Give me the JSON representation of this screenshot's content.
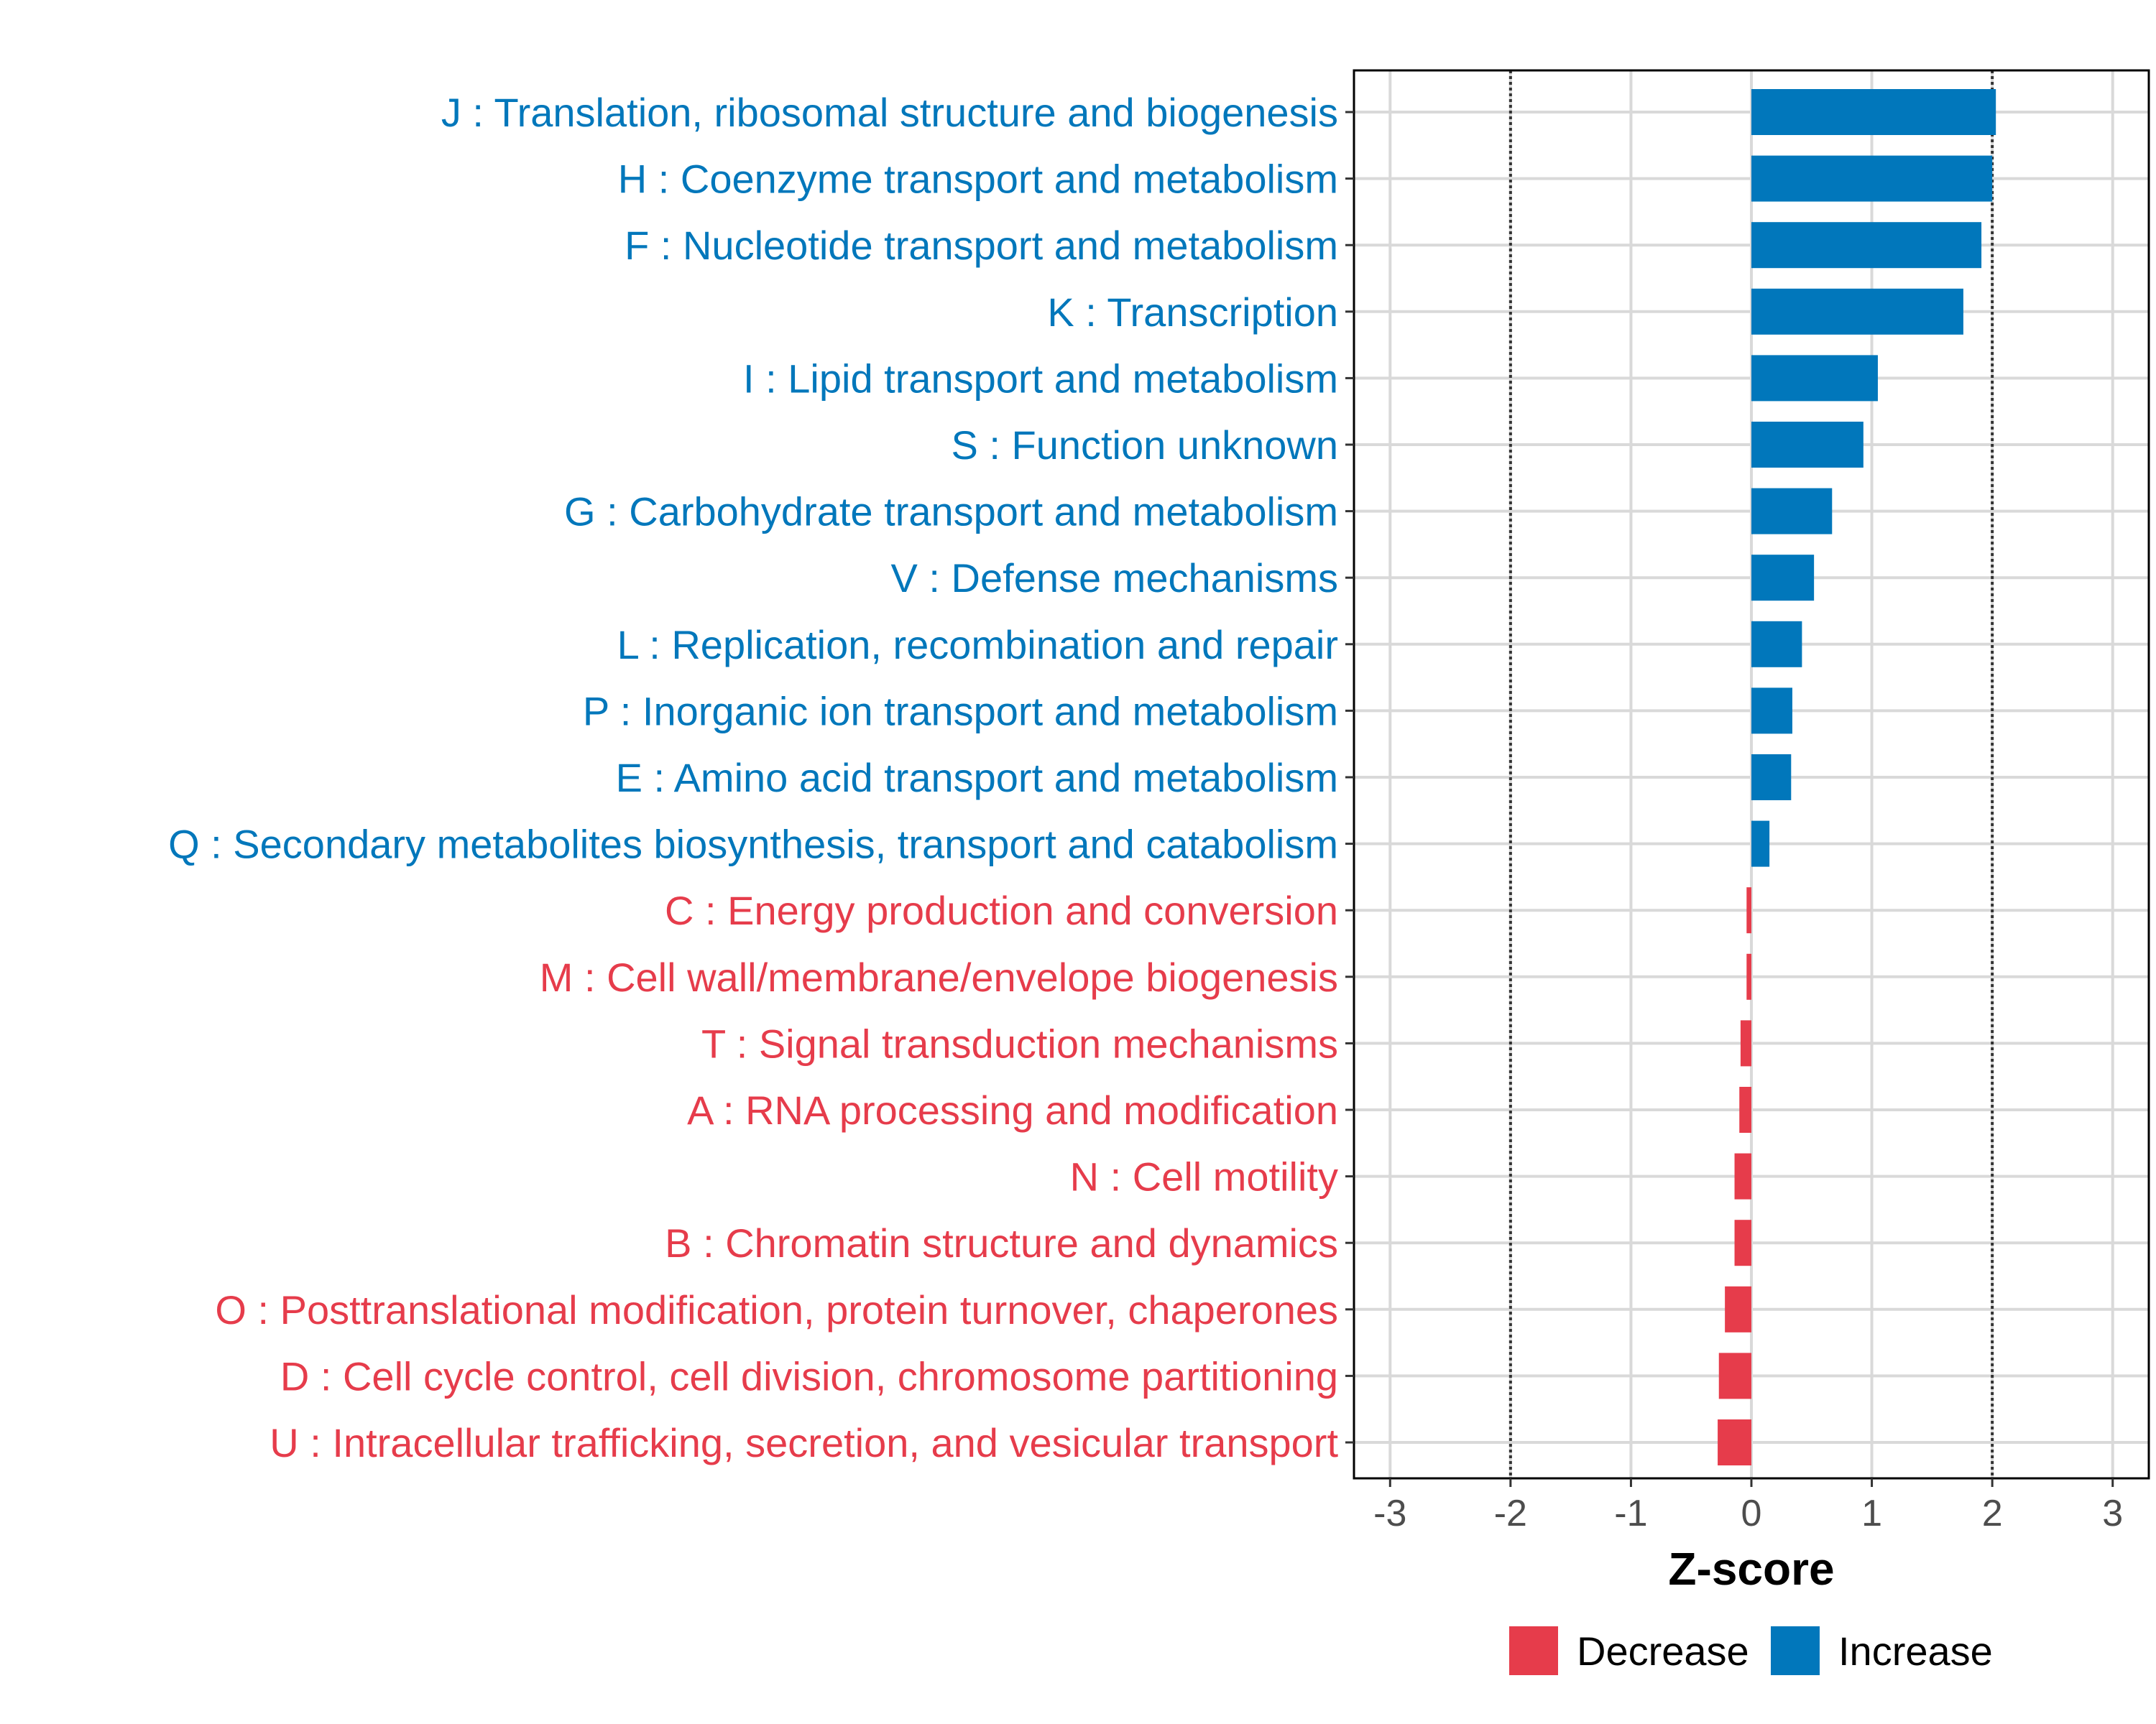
{
  "chart_data": {
    "type": "bar",
    "orientation": "horizontal",
    "title": "",
    "xlabel": "Z-score",
    "ylabel": "",
    "xlim": [
      -3.3,
      3.3
    ],
    "x_ticks": [
      -3,
      -2,
      -1,
      0,
      1,
      2,
      3
    ],
    "x_tick_labels": [
      "-3",
      "-2",
      "-1",
      "0",
      "1",
      "2",
      "3"
    ],
    "reference_lines": [
      -2,
      2
    ],
    "grid": true,
    "legend_position": "bottom",
    "colors": {
      "Increase": "#0177bb",
      "Decrease": "#e63c4b"
    },
    "legend": [
      {
        "name": "Decrease",
        "color": "#e63c4b"
      },
      {
        "name": "Increase",
        "color": "#0177bb"
      }
    ],
    "categories": [
      "J : Translation, ribosomal structure and biogenesis",
      "H : Coenzyme transport and metabolism",
      "F : Nucleotide transport and metabolism",
      "K : Transcription",
      "I : Lipid transport and metabolism",
      "S : Function unknown",
      "G : Carbohydrate transport and metabolism",
      "V : Defense mechanisms",
      "L : Replication, recombination and repair",
      "P : Inorganic ion transport and metabolism",
      "E : Amino acid transport and metabolism",
      "Q : Secondary metabolites biosynthesis, transport and catabolism",
      "C : Energy production and conversion",
      "M : Cell wall/membrane/envelope biogenesis",
      "T : Signal transduction mechanisms",
      "A : RNA processing and modification",
      "N : Cell motility",
      "B : Chromatin structure and dynamics",
      "O : Posttranslational modification, protein turnover, chaperones",
      "D : Cell cycle control, cell division, chromosome partitioning",
      "U : Intracellular trafficking, secretion, and vesicular transport"
    ],
    "values": [
      2.03,
      2.0,
      1.91,
      1.76,
      1.05,
      0.93,
      0.67,
      0.52,
      0.42,
      0.34,
      0.33,
      0.15,
      -0.04,
      -0.04,
      -0.09,
      -0.1,
      -0.14,
      -0.14,
      -0.22,
      -0.27,
      -0.28
    ],
    "groups": [
      "Increase",
      "Increase",
      "Increase",
      "Increase",
      "Increase",
      "Increase",
      "Increase",
      "Increase",
      "Increase",
      "Increase",
      "Increase",
      "Increase",
      "Decrease",
      "Decrease",
      "Decrease",
      "Decrease",
      "Decrease",
      "Decrease",
      "Decrease",
      "Decrease",
      "Decrease"
    ]
  }
}
